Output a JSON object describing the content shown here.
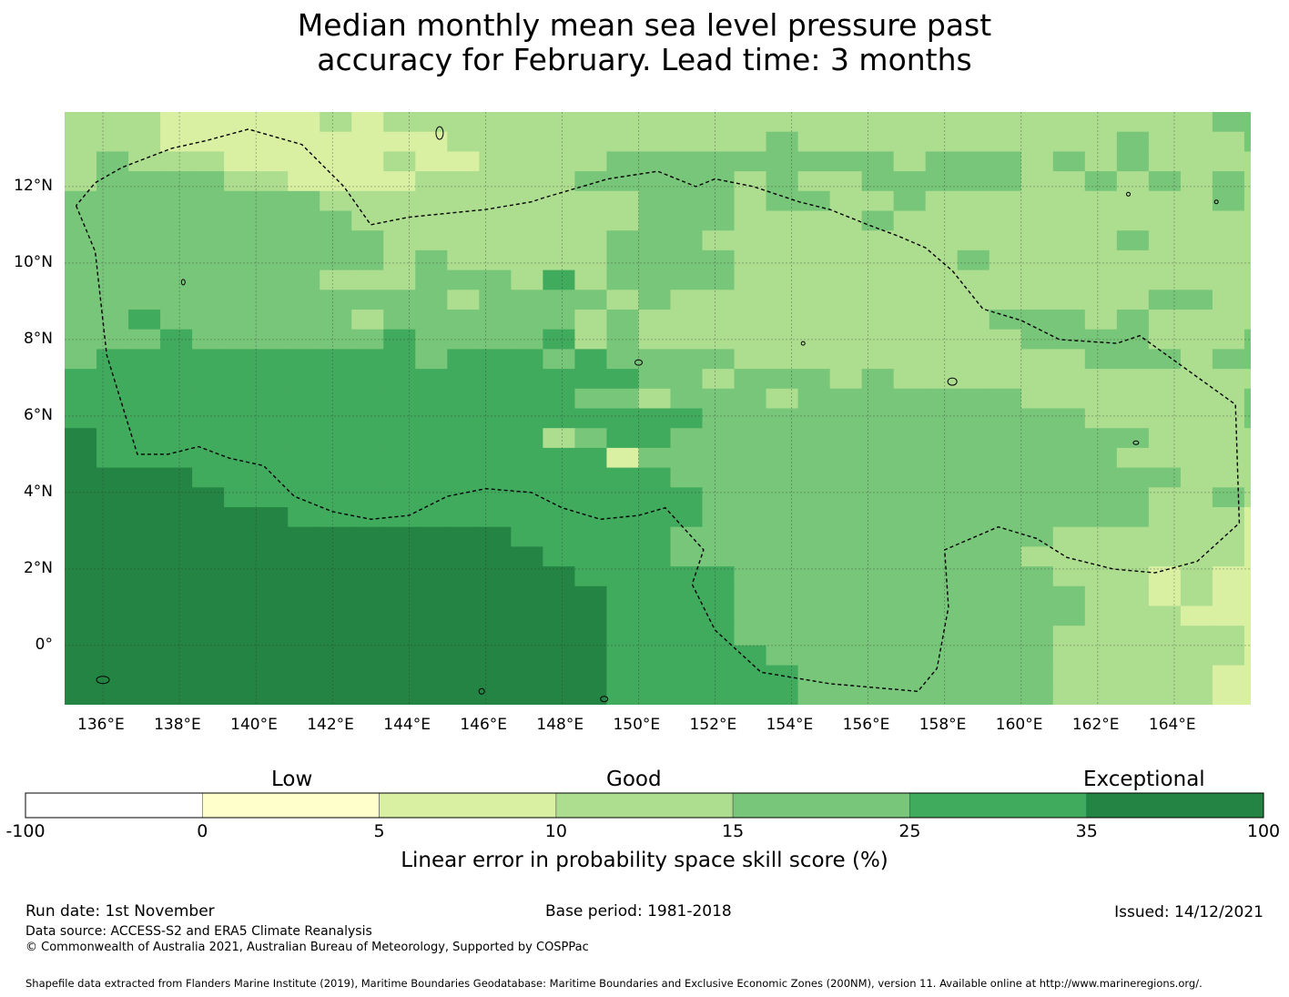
{
  "title": {
    "line1": "Median monthly mean sea level pressure past",
    "line2": "accuracy for February. Lead time: 3 months"
  },
  "map": {
    "lon_ticks": [
      "136°E",
      "138°E",
      "140°E",
      "142°E",
      "144°E",
      "146°E",
      "148°E",
      "150°E",
      "152°E",
      "154°E",
      "156°E",
      "158°E",
      "160°E",
      "162°E",
      "164°E"
    ],
    "lat_ticks": [
      "12°N",
      "10°N",
      "8°N",
      "6°N",
      "4°N",
      "2°N",
      "0°"
    ],
    "lon_values": [
      136,
      138,
      140,
      142,
      144,
      146,
      148,
      150,
      152,
      154,
      156,
      158,
      160,
      162,
      164
    ],
    "lat_values": [
      12,
      10,
      8,
      6,
      4,
      2,
      0
    ],
    "extent": {
      "lon_min": 135,
      "lon_max": 166,
      "lat_min": -1.55,
      "lat_max": 13.95
    },
    "grid_cell_deg": 0.8333,
    "category_thresholds": [
      -100,
      0,
      5,
      10,
      15,
      25,
      35,
      100
    ],
    "skill_regions": [
      {
        "category": 5,
        "description": "southwest dark green",
        "lon": [
          135,
          149.2
        ],
        "lat": [
          -1.55,
          4.2
        ]
      },
      {
        "category": 4,
        "description": "central-west band",
        "lon": [
          135,
          150
        ],
        "lat": [
          4.2,
          8.1
        ]
      },
      {
        "category": 3,
        "description": "northwest",
        "lon": [
          135,
          147
        ],
        "lat": [
          8.1,
          11.6
        ]
      },
      {
        "category": 2,
        "description": "north",
        "lon": [
          135,
          166
        ],
        "lat": [
          11.6,
          13.95
        ]
      },
      {
        "category": 3,
        "description": "central east",
        "lon": [
          150,
          160
        ],
        "lat": [
          -1.55,
          7
        ]
      },
      {
        "category": 2,
        "description": "east",
        "lon": [
          160,
          166
        ],
        "lat": [
          -1.55,
          9
        ]
      }
    ],
    "eez_boundary": [
      [
        135.3,
        11.5
      ],
      [
        135.8,
        10.3
      ],
      [
        136.1,
        7.6
      ],
      [
        136.9,
        5.0
      ],
      [
        137.7,
        5.0
      ],
      [
        138.5,
        5.2
      ],
      [
        139.3,
        4.9
      ],
      [
        140.2,
        4.7
      ],
      [
        141.0,
        3.9
      ],
      [
        142.0,
        3.5
      ],
      [
        143.0,
        3.3
      ],
      [
        144.0,
        3.4
      ],
      [
        145.0,
        3.9
      ],
      [
        146.0,
        4.1
      ],
      [
        147.2,
        4.0
      ],
      [
        148.0,
        3.6
      ],
      [
        149.0,
        3.3
      ],
      [
        150.0,
        3.4
      ],
      [
        150.7,
        3.6
      ],
      [
        151.7,
        2.5
      ],
      [
        151.4,
        1.6
      ],
      [
        152.0,
        0.4
      ],
      [
        153.2,
        -0.7
      ],
      [
        155.0,
        -1.0
      ],
      [
        157.3,
        -1.2
      ],
      [
        157.8,
        -0.6
      ],
      [
        158.1,
        1.0
      ],
      [
        158.0,
        2.5
      ],
      [
        159.4,
        3.1
      ],
      [
        160.4,
        2.8
      ],
      [
        161.2,
        2.3
      ],
      [
        162.4,
        2.0
      ],
      [
        163.5,
        1.9
      ],
      [
        164.6,
        2.2
      ],
      [
        165.7,
        3.2
      ],
      [
        165.6,
        6.3
      ],
      [
        163.1,
        8.1
      ],
      [
        162.5,
        7.9
      ],
      [
        161.0,
        8.0
      ],
      [
        160.0,
        8.5
      ],
      [
        159.0,
        8.8
      ],
      [
        158.2,
        9.8
      ],
      [
        157.5,
        10.4
      ],
      [
        156.8,
        10.7
      ],
      [
        156.0,
        11.0
      ],
      [
        155.0,
        11.4
      ],
      [
        154.2,
        11.6
      ],
      [
        153.0,
        12.0
      ],
      [
        152.0,
        12.2
      ],
      [
        151.5,
        12.0
      ],
      [
        150.5,
        12.4
      ],
      [
        149.2,
        12.2
      ],
      [
        147.5,
        11.7
      ],
      [
        147.2,
        11.6
      ],
      [
        146.0,
        11.4
      ],
      [
        144.0,
        11.2
      ],
      [
        143.0,
        11.0
      ],
      [
        142.3,
        12.0
      ],
      [
        141.2,
        13.1
      ],
      [
        139.8,
        13.5
      ],
      [
        138.7,
        13.2
      ],
      [
        137.8,
        13.0
      ],
      [
        136.5,
        12.5
      ],
      [
        135.8,
        12.1
      ],
      [
        135.3,
        11.5
      ]
    ]
  },
  "colorbar": {
    "categories": [
      "Low",
      "Good",
      "Exceptional"
    ],
    "tick_labels": [
      "-100",
      "0",
      "5",
      "10",
      "15",
      "25",
      "35",
      "100"
    ],
    "colors": [
      "#ffffff",
      "#ffffcc",
      "#d9f0a3",
      "#addd8e",
      "#78c679",
      "#41ab5d",
      "#238443"
    ],
    "label": "Linear error in probability space skill score (%)"
  },
  "footer": {
    "run_date": "Run date: 1st November",
    "base_period": "Base period: 1981-2018",
    "issued": "Issued: 14/12/2021",
    "data_source": "Data source: ACCESS-S2 and ERA5 Climate Reanalysis",
    "copyright": "© Commonwealth of Australia 2021, Australian Bureau of Meteorology, Supported by COSPPac",
    "shapefile": "Shapefile data extracted from Flanders Marine Institute (2019), Maritime Boundaries Geodatabase: Maritime Boundaries and Exclusive Economic Zones (200NM), version 11. Available online at http://www.marineregions.org/."
  }
}
